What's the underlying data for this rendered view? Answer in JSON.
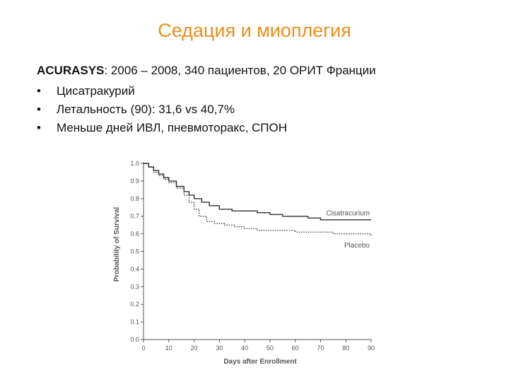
{
  "slide": {
    "title": "Седация и миоплегия",
    "intro_bold": "ACURASYS",
    "intro_rest": ": 2006 – 2008, 340 пациентов, 20 ОРИТ Франции",
    "bullets": [
      "Цисатракурий",
      "Летальность (90): 31,6 vs 40,7%",
      "Меньше дней ИВЛ, пневмоторакс, СПОН"
    ]
  },
  "chart_data": {
    "type": "line",
    "xlabel": "Days after Enrollment",
    "ylabel": "Probability of Survival",
    "xlim": [
      0,
      90
    ],
    "ylim": [
      0,
      1.0
    ],
    "x_ticks": [
      "0",
      "10",
      "20",
      "30",
      "40",
      "50",
      "60",
      "70",
      "80",
      "90"
    ],
    "y_ticks": [
      "0.0",
      "0.1",
      "0.2",
      "0.3",
      "0.4",
      "0.5",
      "0.6",
      "0.7",
      "0.8",
      "0.9",
      "1.0"
    ],
    "grid": false,
    "series": [
      {
        "name": "Cisatracurium",
        "style": "solid",
        "color": "#333333",
        "points": [
          [
            0,
            1.0
          ],
          [
            2,
            0.98
          ],
          [
            4,
            0.96
          ],
          [
            6,
            0.94
          ],
          [
            8,
            0.92
          ],
          [
            10,
            0.9
          ],
          [
            13,
            0.87
          ],
          [
            16,
            0.84
          ],
          [
            18,
            0.82
          ],
          [
            20,
            0.8
          ],
          [
            23,
            0.78
          ],
          [
            26,
            0.76
          ],
          [
            30,
            0.74
          ],
          [
            35,
            0.73
          ],
          [
            40,
            0.73
          ],
          [
            45,
            0.72
          ],
          [
            50,
            0.71
          ],
          [
            55,
            0.7
          ],
          [
            60,
            0.7
          ],
          [
            65,
            0.69
          ],
          [
            70,
            0.68
          ],
          [
            80,
            0.68
          ],
          [
            90,
            0.68
          ]
        ]
      },
      {
        "name": "Placebo",
        "style": "dotted",
        "color": "#333333",
        "points": [
          [
            0,
            1.0
          ],
          [
            2,
            0.98
          ],
          [
            4,
            0.95
          ],
          [
            6,
            0.93
          ],
          [
            8,
            0.91
          ],
          [
            10,
            0.89
          ],
          [
            13,
            0.86
          ],
          [
            16,
            0.82
          ],
          [
            18,
            0.78
          ],
          [
            20,
            0.74
          ],
          [
            22,
            0.7
          ],
          [
            25,
            0.67
          ],
          [
            28,
            0.66
          ],
          [
            32,
            0.65
          ],
          [
            36,
            0.64
          ],
          [
            40,
            0.63
          ],
          [
            45,
            0.62
          ],
          [
            50,
            0.62
          ],
          [
            55,
            0.62
          ],
          [
            60,
            0.61
          ],
          [
            65,
            0.61
          ],
          [
            70,
            0.61
          ],
          [
            75,
            0.6
          ],
          [
            80,
            0.6
          ],
          [
            85,
            0.6
          ],
          [
            90,
            0.59
          ]
        ]
      }
    ]
  }
}
